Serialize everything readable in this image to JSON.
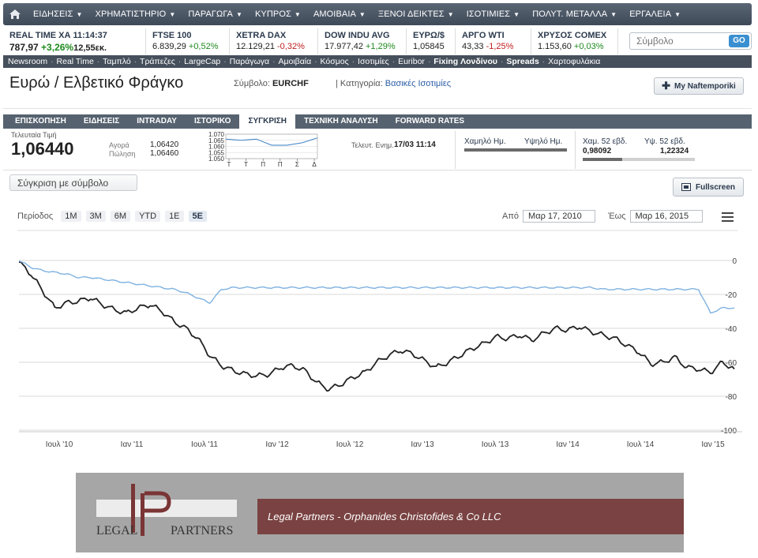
{
  "nav": {
    "items": [
      {
        "label": "ΕΙΔΗΣΕΙΣ"
      },
      {
        "label": "ΧΡΗΜΑΤΙΣΤΗΡΙΟ"
      },
      {
        "label": "ΠΑΡΑΓΩΓΑ"
      },
      {
        "label": "ΚΥΠΡΟΣ"
      },
      {
        "label": "ΑΜΟΙΒΑΙΑ"
      },
      {
        "label": "ΞΕΝΟΙ ΔΕΙΚΤΕΣ"
      },
      {
        "label": "ΙΣΟΤΙΜΙΕΣ"
      },
      {
        "label": "ΠΟΛΥΤ. ΜΕΤΑΛΛΑ"
      },
      {
        "label": "ΕΡΓΑΛΕΙΑ"
      }
    ]
  },
  "ticker": {
    "items": [
      {
        "name": "REAL TIME ΧΑ 11:14:37",
        "value": "787,97",
        "change": "+3,26%",
        "extra": "12,55εκ."
      },
      {
        "name": "FTSE 100",
        "value": "6.839,29",
        "change": "+0,52%"
      },
      {
        "name": "XETRA DAX",
        "value": "12.129,21",
        "change": "-0,32%"
      },
      {
        "name": "DOW INDU AVG",
        "value": "17.977,42",
        "change": "+1,29%"
      },
      {
        "name": "ΕΥΡΩ/$",
        "value": "1,05845",
        "change": ""
      },
      {
        "name": "ΑΡΓΟ WTI",
        "value": "43,33",
        "change": "-1,25%"
      },
      {
        "name": "ΧΡΥΣΟΣ COMEX",
        "value": "1.153,60",
        "change": "+0,03%"
      }
    ],
    "search_placeholder": "Σύμβολο",
    "go_label": "GO"
  },
  "subnav": {
    "items": [
      {
        "label": "Newsroom",
        "bold": false
      },
      {
        "label": "Real Time",
        "bold": false
      },
      {
        "label": "Ταμπλό",
        "bold": false
      },
      {
        "label": "Τράπεζες",
        "bold": false
      },
      {
        "label": "LargeCap",
        "bold": false
      },
      {
        "label": "Παράγωγα",
        "bold": false
      },
      {
        "label": "Αμοιβαία",
        "bold": false
      },
      {
        "label": "Κόσμος",
        "bold": false
      },
      {
        "label": "Ισοτιμίες",
        "bold": false
      },
      {
        "label": "Euribor",
        "bold": false
      },
      {
        "label": "Fixing Λονδίνου",
        "bold": true
      },
      {
        "label": "Spreads",
        "bold": true
      },
      {
        "label": "Χαρτοφυλάκια",
        "bold": false
      }
    ]
  },
  "header": {
    "title": "Ευρώ / Ελβετικό Φράγκο",
    "symbol_label": "Σύμβολο:",
    "symbol": "EURCHF",
    "category_label": "| Κατηγορία:",
    "category": "Βασικές Ισοτιμίες",
    "my_button": "My Naftemporiki"
  },
  "tabs": [
    {
      "label": "ΕΠΙΣΚΟΠΗΣΗ",
      "active": false
    },
    {
      "label": "ΕΙΔΗΣΕΙΣ",
      "active": false
    },
    {
      "label": "INTRADAY",
      "active": false
    },
    {
      "label": "ΙΣΤΟΡΙΚΟ",
      "active": false
    },
    {
      "label": "ΣΥΓΚΡΙΣΗ",
      "active": true
    },
    {
      "label": "ΤΕΧΝΙΚΗ ΑΝΑΛΥΣΗ",
      "active": false
    },
    {
      "label": "FORWARD RATES",
      "active": false
    }
  ],
  "quote": {
    "last_label": "Τελευταία Τιμή",
    "last": "1,06440",
    "bid_label": "Αγορά",
    "bid": "1,06420",
    "ask_label": "Πώληση",
    "ask": "1,06460",
    "updated_label": "Τελευτ. Ενημ.",
    "updated": "17/03 11:14",
    "day_low_label": "Χαμηλό Ημ.",
    "day_high_label": "Υψηλό Ημ.",
    "week52_low_label": "Χαμ. 52 εβδ.",
    "week52_high_label": "Υψ. 52 εβδ.",
    "week52_low": "0,98092",
    "week52_high": "1,22324",
    "week52_position": 0.35
  },
  "mini_chart": {
    "y_ticks": [
      "1.070",
      "1.065",
      "1.060",
      "1.055",
      "1.050"
    ],
    "x_labels": [
      "Τ",
      "Τ",
      "Π",
      "Π",
      "Σ",
      "Δ"
    ],
    "values": [
      1.066,
      1.065,
      1.066,
      1.061,
      1.061,
      1.063,
      1.067
    ]
  },
  "compare": {
    "button": "Σύγκριση με σύμβολο",
    "fullscreen": "Fullscreen"
  },
  "period": {
    "label": "Περίοδος",
    "options": [
      {
        "label": "1M",
        "active": false
      },
      {
        "label": "3M",
        "active": false
      },
      {
        "label": "6M",
        "active": false
      },
      {
        "label": "YTD",
        "active": false
      },
      {
        "label": "1E",
        "active": false
      },
      {
        "label": "5E",
        "active": true
      }
    ],
    "from_label": "Από",
    "from": "Μαρ 17, 2010",
    "to_label": "Έως",
    "to": "Μαρ 16, 2015"
  },
  "chart_data": {
    "type": "line",
    "x_labels": [
      "Ιουλ '10",
      "Ιαν '11",
      "Ιουλ '11",
      "Ιαν '12",
      "Ιουλ '12",
      "Ιαν '13",
      "Ιουλ '13",
      "Ιαν '14",
      "Ιουλ '14",
      "Ιαν '15"
    ],
    "x_range": [
      0,
      60
    ],
    "y_ticks": [
      0,
      -20,
      -40,
      -60,
      -80,
      -100
    ],
    "ylim": [
      -100,
      0
    ],
    "grid": true,
    "series": [
      {
        "color": "#222222",
        "x": [
          0,
          1,
          2,
          3,
          4,
          5,
          6,
          7,
          8,
          9,
          10,
          11,
          12,
          13,
          14,
          15,
          16,
          17,
          18,
          19,
          20,
          21,
          22,
          23,
          24,
          25,
          26,
          27,
          28,
          29,
          30,
          31,
          32,
          33,
          34,
          35,
          36,
          37,
          38,
          39,
          40,
          41,
          42,
          43,
          44,
          45,
          46,
          47,
          48,
          49,
          50,
          51,
          52,
          53,
          54,
          55,
          56,
          57,
          58,
          59,
          60
        ],
        "y": [
          -1,
          -8,
          -18,
          -28,
          -25,
          -24,
          -22,
          -26,
          -29,
          -31,
          -28,
          -26,
          -30,
          -36,
          -40,
          -46,
          -56,
          -62,
          -65,
          -67,
          -68,
          -67,
          -63,
          -62,
          -65,
          -72,
          -76,
          -73,
          -69,
          -66,
          -60,
          -56,
          -53,
          -55,
          -59,
          -63,
          -60,
          -56,
          -52,
          -49,
          -45,
          -46,
          -44,
          -47,
          -43,
          -40,
          -41,
          -39,
          -42,
          -44,
          -46,
          -50,
          -54,
          -61,
          -60,
          -57,
          -63,
          -64,
          -66,
          -60,
          -64
        ]
      },
      {
        "color": "#7fb2e0",
        "x": [
          0,
          1,
          2,
          3,
          4,
          5,
          6,
          7,
          8,
          9,
          10,
          11,
          12,
          13,
          14,
          15,
          16,
          17,
          18,
          19,
          20,
          21,
          22,
          23,
          24,
          25,
          26,
          27,
          28,
          29,
          30,
          31,
          32,
          33,
          34,
          35,
          36,
          37,
          38,
          39,
          40,
          41,
          42,
          43,
          44,
          45,
          46,
          47,
          48,
          49,
          50,
          51,
          52,
          53,
          54,
          55,
          56,
          57,
          58,
          59,
          60
        ],
        "y": [
          0,
          -4,
          -6,
          -7,
          -8,
          -10,
          -10,
          -11,
          -12,
          -13,
          -14,
          -15,
          -16,
          -17,
          -19,
          -22,
          -25,
          -17,
          -16,
          -16,
          -16,
          -16,
          -16,
          -16,
          -16,
          -16,
          -16,
          -16,
          -16,
          -16,
          -16,
          -16,
          -16,
          -16,
          -16,
          -16,
          -16,
          -16,
          -16,
          -16,
          -16,
          -16,
          -16,
          -16,
          -16,
          -16,
          -16,
          -16,
          -16,
          -17,
          -17,
          -17,
          -17,
          -17,
          -17,
          -17,
          -17,
          -17,
          -31,
          -28,
          -28
        ]
      }
    ]
  },
  "footer": {
    "logo_text": "LEGAL PARTNERS",
    "banner": "Legal Partners - Orphanides Christofides & Co LLC"
  },
  "colors": {
    "nav_bg": "#4a5563",
    "tab_bg": "#56626f",
    "footer_bg": "#a6a6a6",
    "banner_bg": "#7a4242"
  }
}
